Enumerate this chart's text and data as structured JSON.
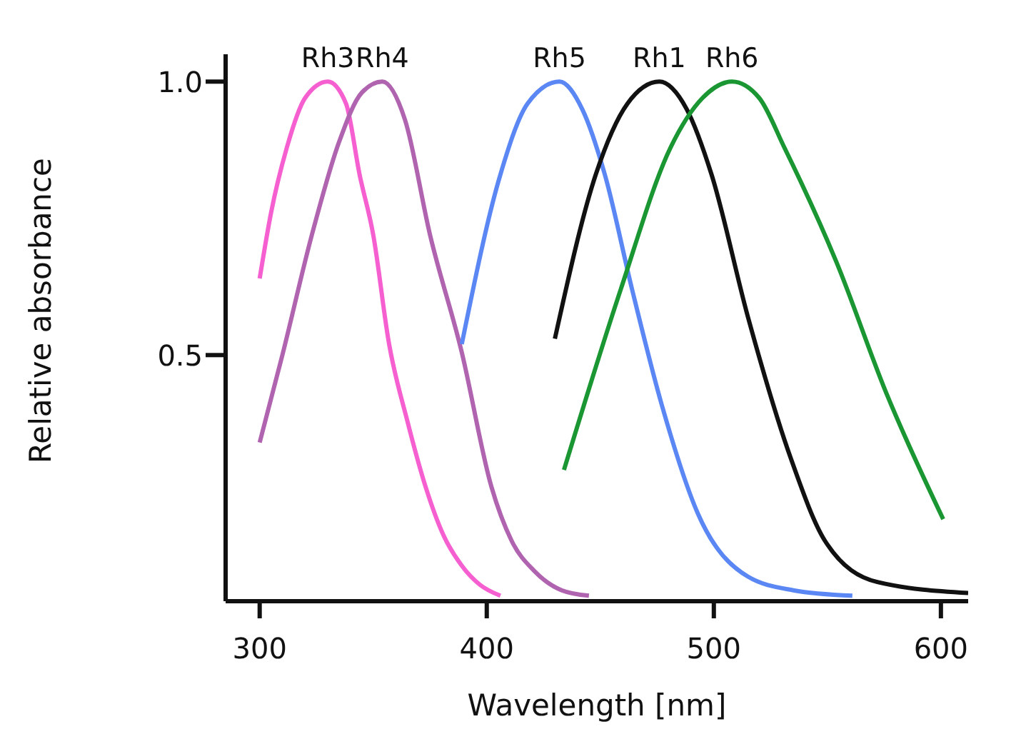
{
  "chart_data": {
    "type": "line",
    "xlabel": "Wavelength [nm]",
    "ylabel": "Relative absorbance",
    "xlim": [
      285,
      612
    ],
    "xticks": [
      300,
      400,
      500,
      600
    ],
    "ylim": [
      0.05,
      1.05
    ],
    "yticks": [
      0.5,
      {
        "value": 1,
        "label": "1.0"
      }
    ],
    "grid": false,
    "legend": false,
    "marker": "none",
    "line_style": "solid",
    "series": [
      {
        "name": "Rh3",
        "color": "#f55fd0",
        "x": [
          300,
          305,
          312,
          320,
          330,
          338,
          344,
          350,
          357,
          365,
          373,
          381,
          389,
          397,
          406
        ],
        "values": [
          0.64,
          0.76,
          0.88,
          0.97,
          1.0,
          0.96,
          0.83,
          0.72,
          0.52,
          0.38,
          0.26,
          0.17,
          0.115,
          0.08,
          0.06
        ]
      },
      {
        "name": "Rh4",
        "color": "#b064b0",
        "x": [
          300,
          310,
          323,
          335,
          345,
          354,
          364,
          375,
          389,
          402,
          411,
          421,
          433,
          445
        ],
        "values": [
          0.34,
          0.5,
          0.72,
          0.89,
          0.98,
          1.0,
          0.93,
          0.72,
          0.505,
          0.26,
          0.16,
          0.105,
          0.07,
          0.06
        ]
      },
      {
        "name": "Rh5",
        "color": "#5b87f5",
        "x": [
          389,
          406,
          418,
          432,
          442,
          452,
          464,
          477,
          493,
          515,
          535,
          561
        ],
        "values": [
          0.52,
          0.83,
          0.96,
          1.0,
          0.95,
          0.83,
          0.62,
          0.41,
          0.21,
          0.095,
          0.07,
          0.06
        ]
      },
      {
        "name": "Rh1",
        "color": "#111111",
        "x": [
          430,
          448,
          462,
          476,
          488,
          499,
          515,
          534,
          549,
          572,
          612
        ],
        "values": [
          0.53,
          0.83,
          0.96,
          1.0,
          0.95,
          0.83,
          0.57,
          0.31,
          0.16,
          0.085,
          0.065
        ]
      },
      {
        "name": "Rh6",
        "color": "#1a9632",
        "x": [
          434,
          459,
          481,
          495,
          508,
          520,
          531,
          554,
          576,
          601
        ],
        "values": [
          0.29,
          0.62,
          0.88,
          0.97,
          1.0,
          0.97,
          0.88,
          0.67,
          0.43,
          0.2
        ]
      }
    ]
  }
}
